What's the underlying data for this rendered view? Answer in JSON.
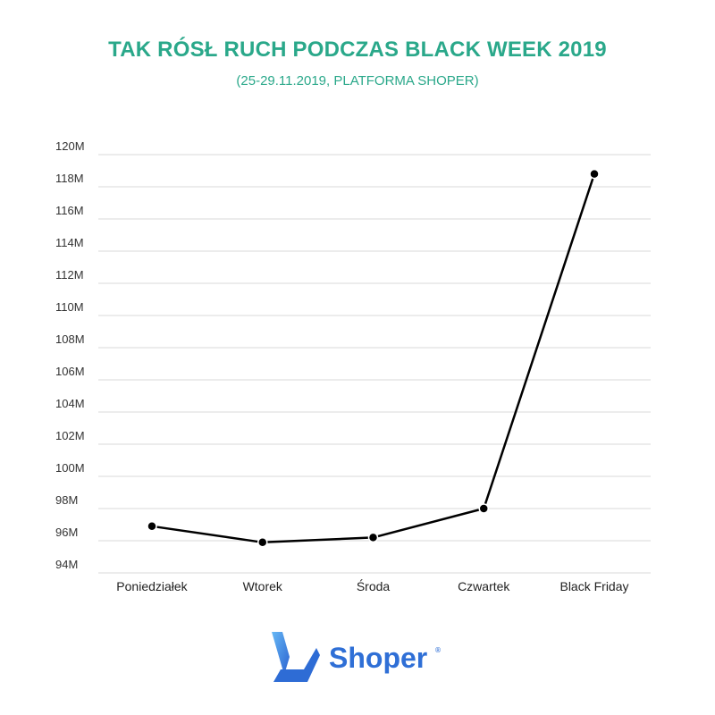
{
  "colors": {
    "title": "#2aa88a",
    "grid": "#d9d9d9",
    "line": "#000000",
    "brand_blue": "#2f6fd6",
    "brand_blue_light": "#5fb0f2"
  },
  "logo": {
    "icon": "shoper-logo-icon",
    "text": "Shoper",
    "registered": "®"
  },
  "chart_data": {
    "type": "line",
    "title": "TAK RÓSŁ RUCH PODCZAS BLACK WEEK 2019",
    "subtitle": "(25-29.11.2019, PLATFORMA SHOPER)",
    "xlabel": "",
    "ylabel": "",
    "categories": [
      "Poniedziałek",
      "Wtorek",
      "Środa",
      "Czwartek",
      "Black Friday"
    ],
    "values": [
      96.9,
      95.9,
      96.2,
      98.0,
      118.8
    ],
    "unit": "M",
    "ylim": [
      94,
      120
    ],
    "yticks": [
      94,
      96,
      98,
      100,
      102,
      104,
      106,
      108,
      110,
      112,
      114,
      116,
      118,
      120
    ],
    "ytick_labels": [
      "94M",
      "96M",
      "98M",
      "100M",
      "102M",
      "104M",
      "106M",
      "108M",
      "110M",
      "112M",
      "114M",
      "116M",
      "118M",
      "120M"
    ],
    "grid": true,
    "legend": "none",
    "markers": true
  }
}
